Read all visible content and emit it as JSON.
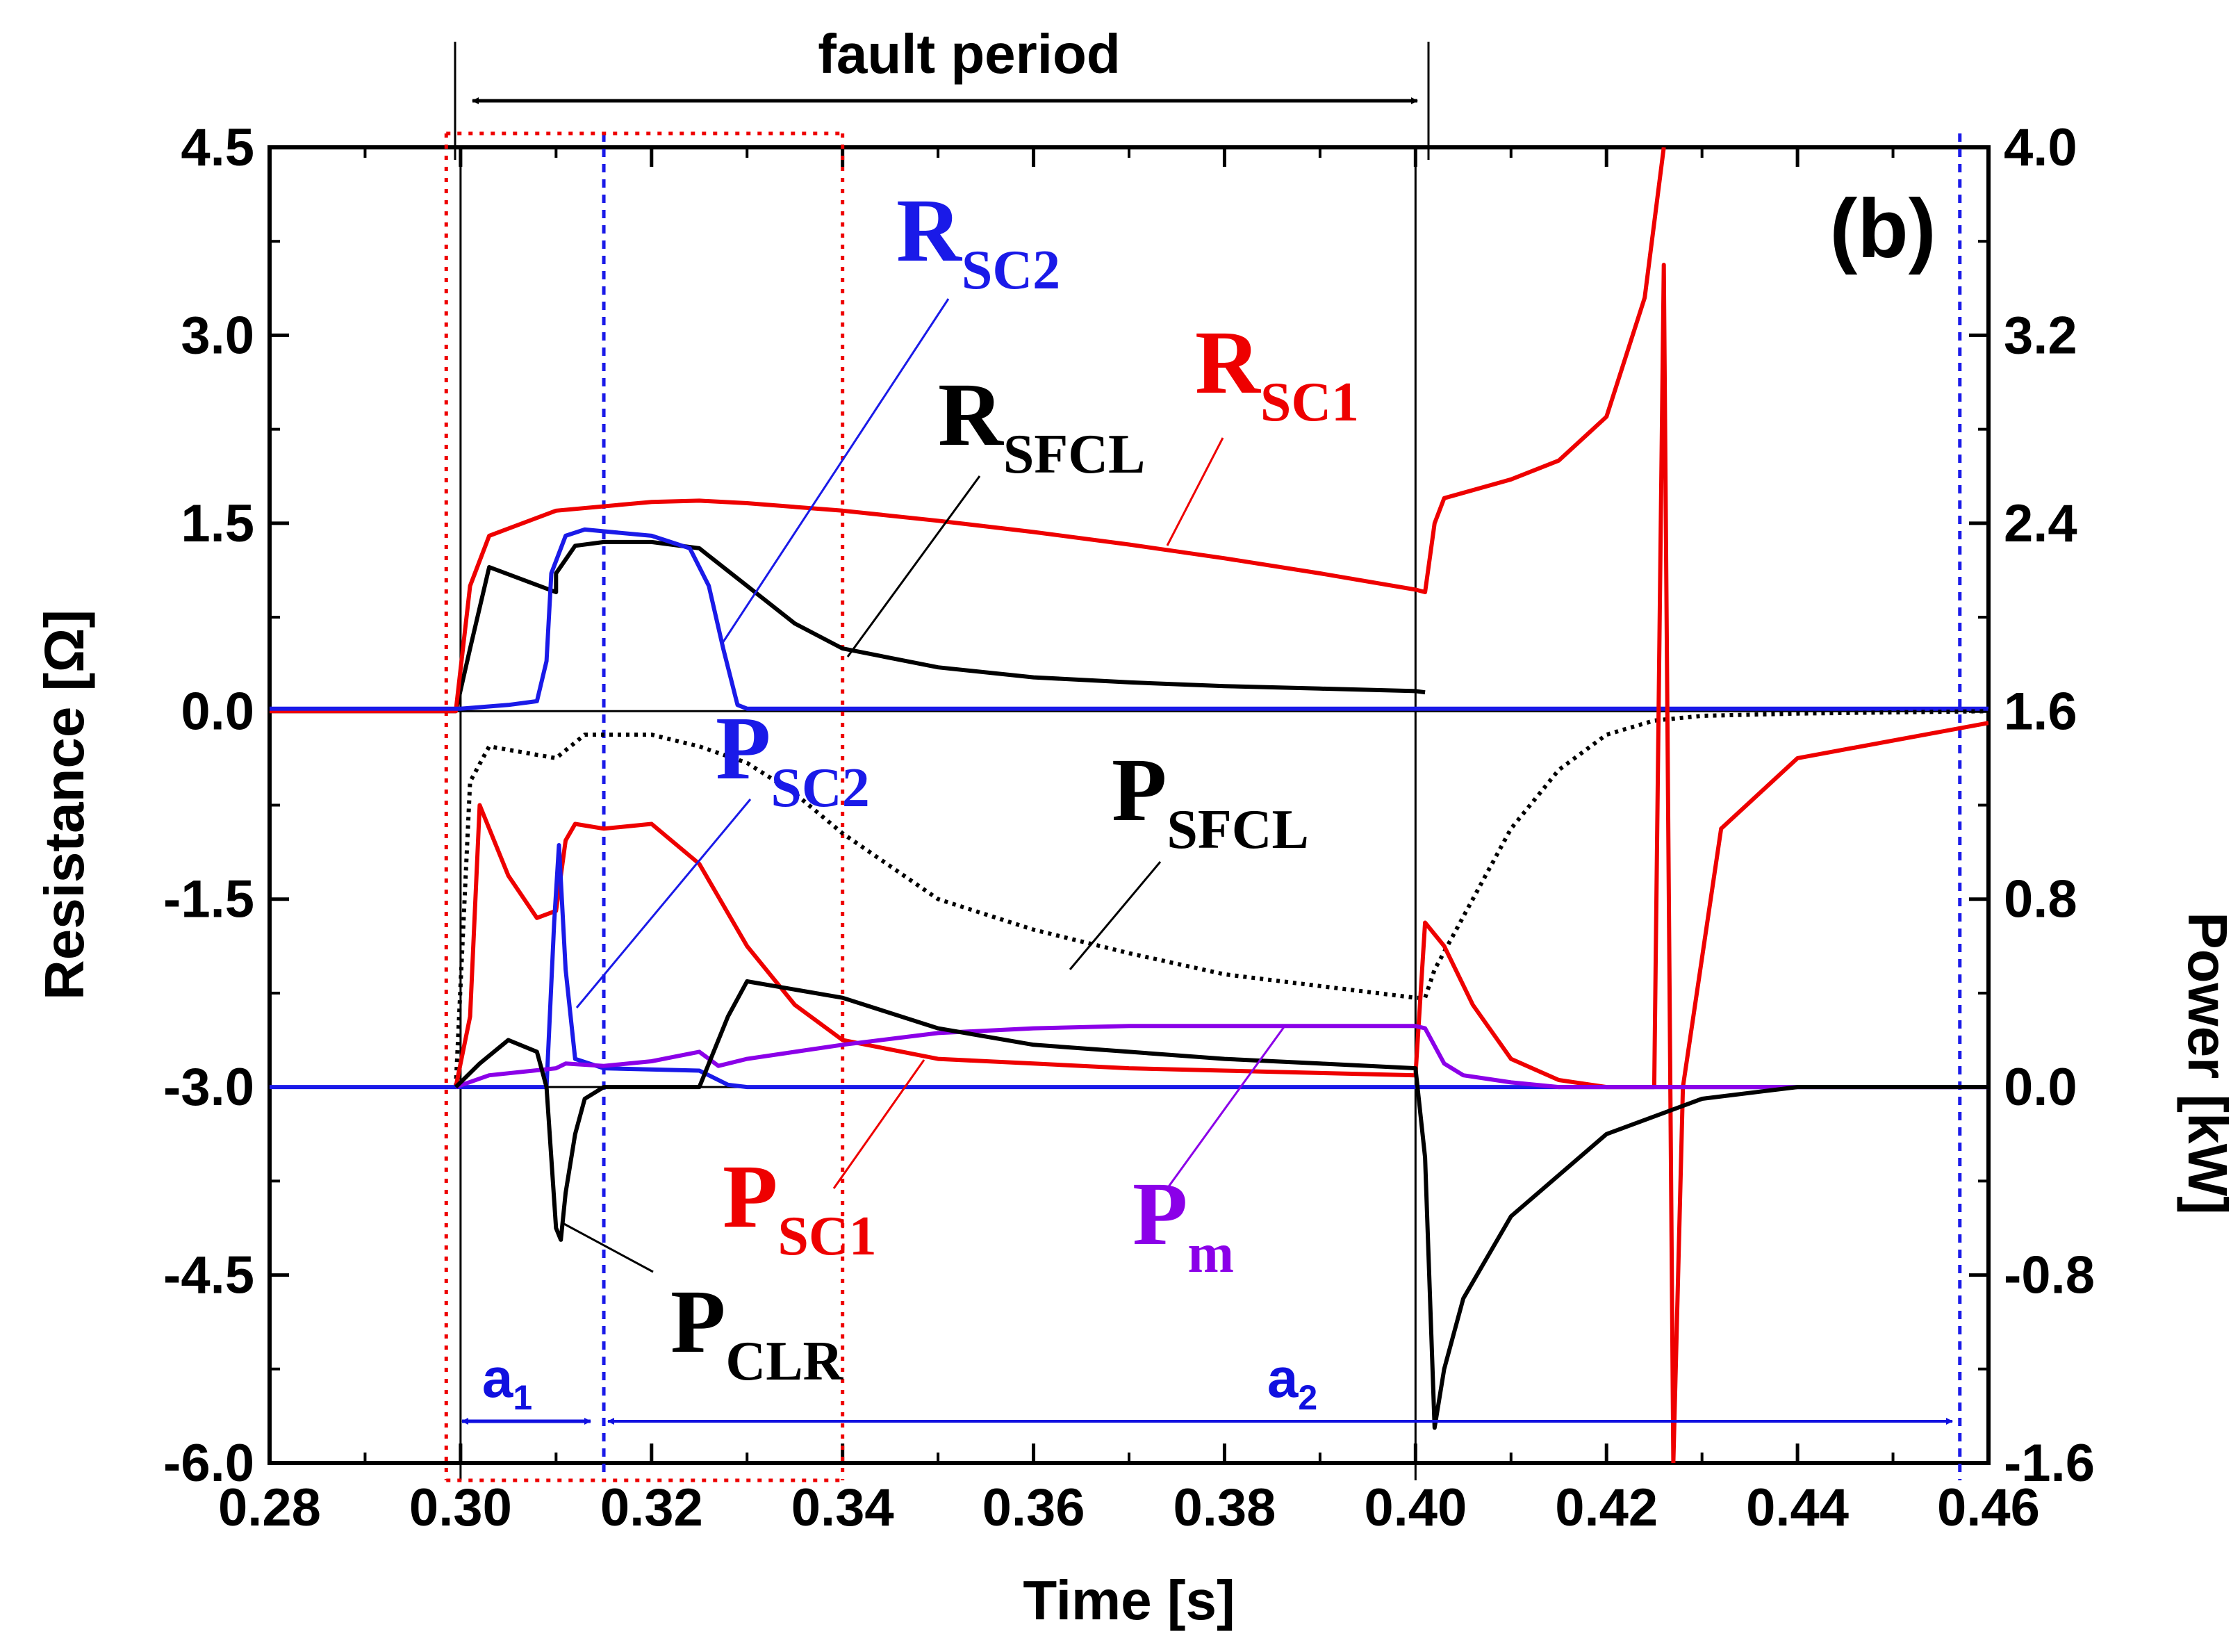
{
  "chart_data": {
    "type": "line",
    "panel_label": "(b)",
    "xlabel": "Time [s]",
    "ylabel_left": "Resistance [Ω]",
    "ylabel_right": "Power [kW]",
    "xlim": [
      0.28,
      0.46
    ],
    "ylim_left": [
      -6.0,
      4.5
    ],
    "ylim_right": [
      -1.6,
      4.0
    ],
    "x_ticks": [
      "0.28",
      "0.30",
      "0.32",
      "0.34",
      "0.36",
      "0.38",
      "0.40",
      "0.42",
      "0.44",
      "0.46"
    ],
    "y_left_ticks": [
      "4.5",
      "3.0",
      "1.5",
      "0.0",
      "-1.5",
      "-3.0",
      "-4.5",
      "-6.0"
    ],
    "y_right_ticks": [
      "4.0",
      "3.2",
      "2.4",
      "1.6",
      "0.8",
      "0.0",
      "-0.8",
      "-1.6"
    ],
    "fault_period": {
      "label": "fault period",
      "start": 0.3,
      "end": 0.4
    },
    "intervals": [
      {
        "main": "a",
        "sub": "1",
        "start": 0.3,
        "end": 0.315,
        "color": "#1010e0"
      },
      {
        "main": "a",
        "sub": "2",
        "start": 0.315,
        "end": 0.457,
        "color": "#1010e0"
      }
    ],
    "series": [
      {
        "name": "R_SFCL",
        "label_main": "R",
        "label_sub": "SFCL",
        "axis": "left",
        "color": "#000000",
        "x": [
          0.28,
          0.2995,
          0.301,
          0.303,
          0.31,
          0.31,
          0.312,
          0.315,
          0.32,
          0.325,
          0.33,
          0.335,
          0.34,
          0.35,
          0.36,
          0.37,
          0.38,
          0.39,
          0.4,
          0.401
        ],
        "y": [
          0.0,
          0.0,
          0.5,
          1.15,
          0.95,
          1.1,
          1.32,
          1.35,
          1.35,
          1.3,
          1.0,
          0.7,
          0.5,
          0.35,
          0.27,
          0.23,
          0.2,
          0.18,
          0.16,
          0.15
        ]
      },
      {
        "name": "R_SC1",
        "label_main": "R",
        "label_sub": "SC1",
        "axis": "left",
        "color": "#ee0000",
        "x": [
          0.28,
          0.2995,
          0.301,
          0.303,
          0.31,
          0.32,
          0.325,
          0.33,
          0.34,
          0.35,
          0.36,
          0.37,
          0.38,
          0.39,
          0.4,
          0.401,
          0.402,
          0.403,
          0.41,
          0.415,
          0.42,
          0.424,
          0.426
        ],
        "y": [
          0.0,
          0.0,
          1.0,
          1.4,
          1.6,
          1.67,
          1.68,
          1.66,
          1.6,
          1.52,
          1.43,
          1.33,
          1.22,
          1.1,
          0.97,
          0.95,
          1.5,
          1.7,
          1.85,
          2.0,
          2.35,
          3.3,
          4.5
        ]
      },
      {
        "name": "R_SC2",
        "label_main": "R",
        "label_sub": "SC2",
        "axis": "left",
        "color": "#1a1ae8",
        "x": [
          0.28,
          0.3,
          0.305,
          0.308,
          0.309,
          0.3095,
          0.311,
          0.313,
          0.32,
          0.324,
          0.326,
          0.3275,
          0.329,
          0.33,
          0.46
        ],
        "y": [
          0.02,
          0.02,
          0.05,
          0.08,
          0.4,
          1.1,
          1.4,
          1.45,
          1.4,
          1.3,
          1.0,
          0.5,
          0.05,
          0.02,
          0.02
        ]
      },
      {
        "name": "P_SFCL",
        "label_main": "P",
        "label_sub": "SFCL",
        "axis": "right",
        "color": "#000000",
        "x": [
          0.2995,
          0.301,
          0.303,
          0.31,
          0.313,
          0.32,
          0.325,
          0.33,
          0.335,
          0.34,
          0.35,
          0.36,
          0.37,
          0.38,
          0.39,
          0.4,
          0.401,
          0.402,
          0.406,
          0.41,
          0.415,
          0.42,
          0.425,
          0.43,
          0.44,
          0.46
        ],
        "y": [
          0.0,
          1.3,
          1.45,
          1.4,
          1.5,
          1.5,
          1.45,
          1.38,
          1.25,
          1.08,
          0.8,
          0.67,
          0.57,
          0.48,
          0.43,
          0.38,
          0.38,
          0.5,
          0.8,
          1.1,
          1.35,
          1.5,
          1.56,
          1.58,
          1.59,
          1.6
        ]
      },
      {
        "name": "P_SC1",
        "label_main": "P",
        "label_sub": "SC1",
        "axis": "right",
        "color": "#ee0000",
        "x": [
          0.2995,
          0.301,
          0.302,
          0.305,
          0.308,
          0.31,
          0.311,
          0.312,
          0.315,
          0.32,
          0.325,
          0.33,
          0.335,
          0.34,
          0.35,
          0.36,
          0.37,
          0.38,
          0.39,
          0.4,
          0.401,
          0.403,
          0.406,
          0.41,
          0.415,
          0.42,
          0.425,
          0.426,
          0.427,
          0.428,
          0.432,
          0.44,
          0.46
        ],
        "y": [
          0.0,
          0.3,
          1.2,
          0.9,
          0.72,
          0.75,
          1.05,
          1.12,
          1.1,
          1.12,
          0.95,
          0.6,
          0.35,
          0.2,
          0.12,
          0.1,
          0.08,
          0.07,
          0.06,
          0.05,
          0.7,
          0.6,
          0.35,
          0.12,
          0.03,
          0.0,
          0.0,
          3.5,
          -1.6,
          0.0,
          1.1,
          1.4,
          1.55
        ]
      },
      {
        "name": "P_SC2",
        "label_main": "P",
        "label_sub": "SC2",
        "axis": "right",
        "color": "#1a1ae8",
        "x": [
          0.28,
          0.309,
          0.3098,
          0.3103,
          0.311,
          0.312,
          0.315,
          0.325,
          0.326,
          0.328,
          0.33,
          0.46
        ],
        "y": [
          0.0,
          0.0,
          0.7,
          1.03,
          0.5,
          0.12,
          0.08,
          0.07,
          0.05,
          0.01,
          0.0,
          0.0
        ]
      },
      {
        "name": "P_m",
        "label_main": "P",
        "label_sub": "m",
        "axis": "right",
        "color": "#8b00e8",
        "x": [
          0.2995,
          0.303,
          0.31,
          0.311,
          0.315,
          0.32,
          0.325,
          0.327,
          0.33,
          0.34,
          0.35,
          0.36,
          0.37,
          0.38,
          0.39,
          0.4,
          0.401,
          0.403,
          0.405,
          0.41,
          0.415,
          0.42,
          0.46
        ],
        "y": [
          0.0,
          0.05,
          0.08,
          0.1,
          0.09,
          0.11,
          0.15,
          0.09,
          0.12,
          0.18,
          0.23,
          0.25,
          0.26,
          0.26,
          0.26,
          0.26,
          0.25,
          0.1,
          0.05,
          0.02,
          0.0,
          0.0,
          0.0
        ]
      },
      {
        "name": "P_CLR",
        "label_main": "P",
        "label_sub": "CLR",
        "axis": "right",
        "color": "#000000",
        "x": [
          0.2995,
          0.302,
          0.305,
          0.308,
          0.309,
          0.31,
          0.3105,
          0.311,
          0.312,
          0.313,
          0.315,
          0.32,
          0.325,
          0.328,
          0.33,
          0.34,
          0.35,
          0.36,
          0.37,
          0.38,
          0.39,
          0.4,
          0.401,
          0.402,
          0.403,
          0.405,
          0.41,
          0.42,
          0.43,
          0.44,
          0.46
        ],
        "y": [
          0.0,
          0.1,
          0.2,
          0.15,
          0.0,
          -0.6,
          -0.65,
          -0.45,
          -0.2,
          -0.05,
          0.0,
          0.0,
          0.0,
          0.3,
          0.45,
          0.38,
          0.25,
          0.18,
          0.15,
          0.12,
          0.1,
          0.08,
          -0.3,
          -1.45,
          -1.2,
          -0.9,
          -0.55,
          -0.2,
          -0.05,
          0.0,
          0.0
        ]
      }
    ],
    "vertical_markers": [
      {
        "x": 0.2985,
        "color": "#ee0000",
        "style": "dotted"
      },
      {
        "x": 0.315,
        "color": "#1a1ae8",
        "style": "dashed"
      },
      {
        "x": 0.34,
        "color": "#ee0000",
        "style": "dotted"
      },
      {
        "x": 0.457,
        "color": "#1a1ae8",
        "style": "dashed"
      },
      {
        "x": 0.3,
        "color": "#000000",
        "style": "solid"
      },
      {
        "x": 0.4,
        "color": "#000000",
        "style": "solid"
      }
    ]
  }
}
